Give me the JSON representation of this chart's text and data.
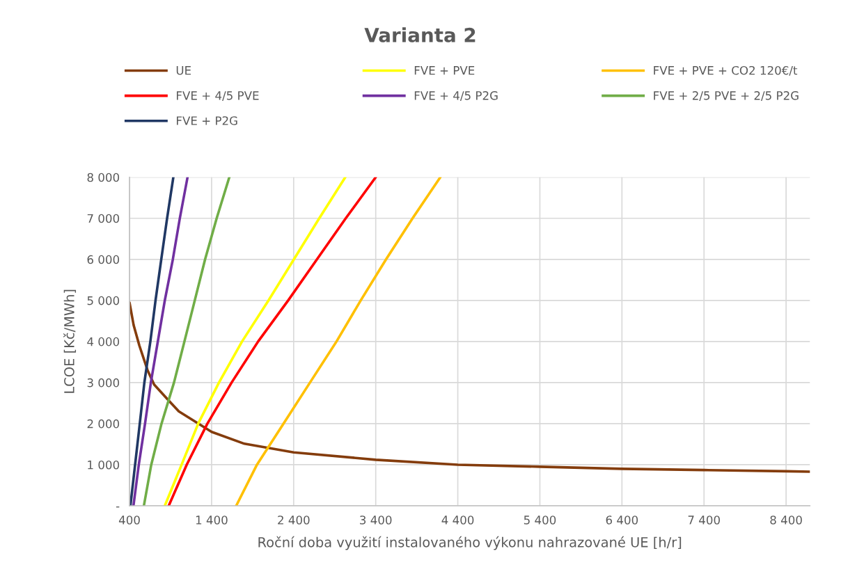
{
  "chart_data": {
    "type": "line",
    "title": "Varianta 2",
    "xlabel": "Roční doba využití instalovaného výkonu nahrazované UE [h/r]",
    "ylabel": "LCOE [Kč/MWh]",
    "xlim": [
      400,
      8690
    ],
    "ylim": [
      0,
      8000
    ],
    "xticks": [
      400,
      {
        "value": 1400,
        "label": "1 400"
      },
      {
        "value": 2400,
        "label": "2 400"
      },
      {
        "value": 3400,
        "label": "3 400"
      },
      {
        "value": 4400,
        "label": "4 400"
      },
      {
        "value": 5400,
        "label": "5 400"
      },
      {
        "value": 6400,
        "label": "6 400"
      },
      {
        "value": 7400,
        "label": "7 400"
      },
      {
        "value": 8400,
        "label": "8 400"
      }
    ],
    "yticks": [
      {
        "value": 0,
        "label": "-"
      },
      {
        "value": 1000,
        "label": "1 000"
      },
      {
        "value": 2000,
        "label": "2 000"
      },
      {
        "value": 3000,
        "label": "3 000"
      },
      {
        "value": 4000,
        "label": "4 000"
      },
      {
        "value": 5000,
        "label": "5 000"
      },
      {
        "value": 6000,
        "label": "6 000"
      },
      {
        "value": 7000,
        "label": "7 000"
      },
      {
        "value": 8000,
        "label": "8 000"
      }
    ],
    "grid": true,
    "legend": "top",
    "marker": "none",
    "line_style": "solid",
    "series": [
      {
        "name": "UE",
        "color": "#843c0c",
        "x": [
          400,
          450,
          520,
          620,
          700,
          860,
          1000,
          1200,
          1400,
          1800,
          2400,
          3400,
          4400,
          5400,
          6400,
          7400,
          8400,
          8690
        ],
        "values": [
          4950,
          4400,
          3900,
          3300,
          2950,
          2600,
          2300,
          2050,
          1800,
          1510,
          1300,
          1120,
          1000,
          950,
          900,
          870,
          840,
          830
        ]
      },
      {
        "name": "FVE + PVE",
        "color": "#ffff00",
        "x": [
          830,
          1035,
          1237,
          1490,
          1771,
          2094,
          2403,
          2712,
          3029
        ],
        "values": [
          0,
          1000,
          2000,
          3000,
          4000,
          5000,
          6000,
          7000,
          8000
        ]
      },
      {
        "name": "FVE + PVE + CO2 120€/t",
        "color": "#ffc000",
        "x": [
          1700,
          1953,
          2276,
          2599,
          2922,
          3217,
          3526,
          3849,
          4187
        ],
        "values": [
          0,
          1000,
          2000,
          3000,
          4000,
          5000,
          6000,
          7000,
          8000
        ]
      },
      {
        "name": "FVE + 4/5 PVE",
        "color": "#ff0000",
        "x": [
          878,
          1097,
          1349,
          1644,
          1967,
          2333,
          2684,
          3035,
          3400
        ],
        "values": [
          0,
          1000,
          2000,
          3000,
          4000,
          5000,
          6000,
          7000,
          8000
        ]
      },
      {
        "name": "FVE + 4/5 P2G",
        "color": "#7030a0",
        "x": [
          448,
          513,
          589,
          660,
          745,
          830,
          928,
          1013,
          1107
        ],
        "values": [
          0,
          1000,
          2000,
          3000,
          4000,
          5000,
          6000,
          7000,
          8000
        ]
      },
      {
        "name": "FVE + 2/5 PVE + 2/5 P2G",
        "color": "#70ad47",
        "x": [
          575,
          665,
          790,
          942,
          1069,
          1195,
          1321,
          1462,
          1616
        ],
        "values": [
          0,
          1000,
          2000,
          3000,
          4000,
          5000,
          6000,
          7000,
          8000
        ]
      },
      {
        "name": "FVE + P2G",
        "color": "#203864",
        "x": [
          411,
          468,
          525,
          581,
          654,
          717,
          787,
          858,
          934
        ],
        "values": [
          0,
          1000,
          2000,
          3000,
          4000,
          5000,
          6000,
          7000,
          8000
        ]
      }
    ]
  }
}
